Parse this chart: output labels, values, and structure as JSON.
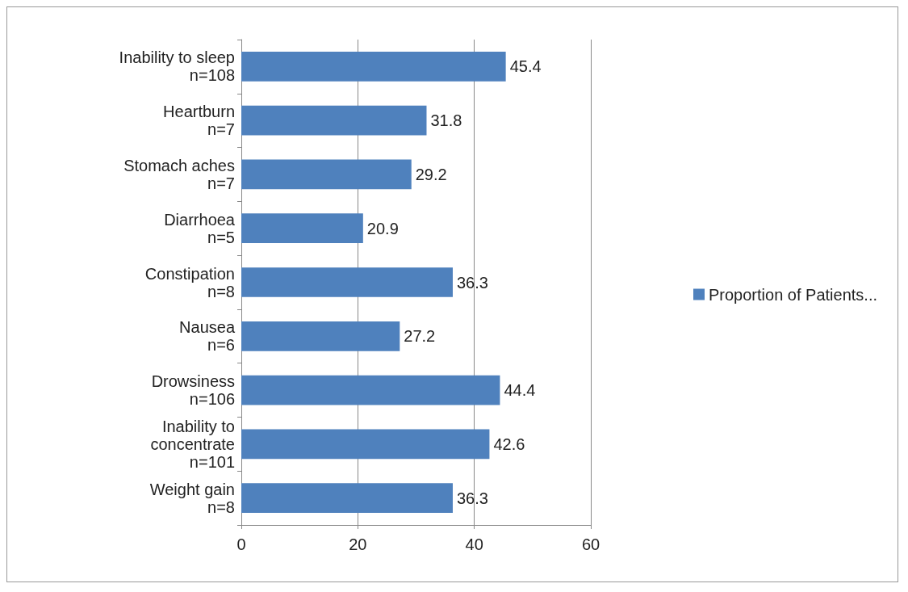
{
  "chart_data": {
    "type": "bar",
    "orientation": "horizontal",
    "categories": [
      "Inability to sleep\nn=108",
      "Heartburn\nn=7",
      "Stomach aches\nn=7",
      "Diarrhoea\nn=5",
      "Constipation\nn=8",
      "Nausea\nn=6",
      "Drowsiness\nn=106",
      "Inability to\nconcentrate\nn=101",
      "Weight gain\nn=8"
    ],
    "series": [
      {
        "name": "Proportion of Patients...",
        "color": "#4f81bd",
        "values": [
          45.4,
          31.8,
          29.2,
          20.9,
          36.3,
          27.2,
          44.4,
          42.6,
          36.3
        ]
      }
    ],
    "xlim": [
      0,
      60
    ],
    "xticks": [
      0,
      20,
      40,
      60
    ],
    "grid": "x",
    "legend": "right",
    "data_labels": true
  }
}
